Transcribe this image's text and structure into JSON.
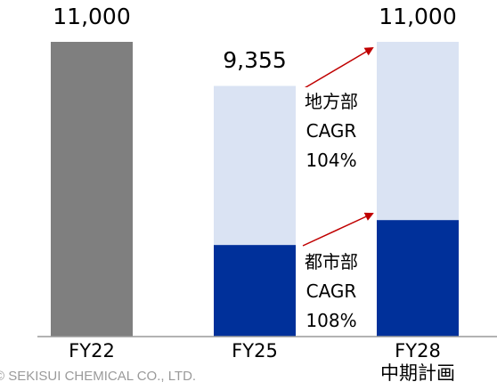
{
  "chart_data": {
    "type": "stacked_bar",
    "categories": [
      "FY22",
      "FY25",
      "FY28\n中期計画"
    ],
    "series": [
      {
        "color": "#7f7f7f",
        "values": [
          11000,
          null,
          null
        ]
      },
      {
        "color": "#00309a",
        "values": [
          null,
          3420,
          4350
        ]
      },
      {
        "color": "#dae3f3",
        "values": [
          null,
          5935,
          6650
        ]
      }
    ],
    "totals": [
      11000,
      9355,
      11000
    ],
    "total_labels": [
      "11,000",
      "9,355",
      "11,000"
    ],
    "ylim": [
      0,
      11000
    ],
    "annotations": [
      "地方部\nCAGR\n104%",
      "都市部\nCAGR\n108%"
    ],
    "footer": "© SEKISUI CHEMICAL CO., LTD."
  }
}
